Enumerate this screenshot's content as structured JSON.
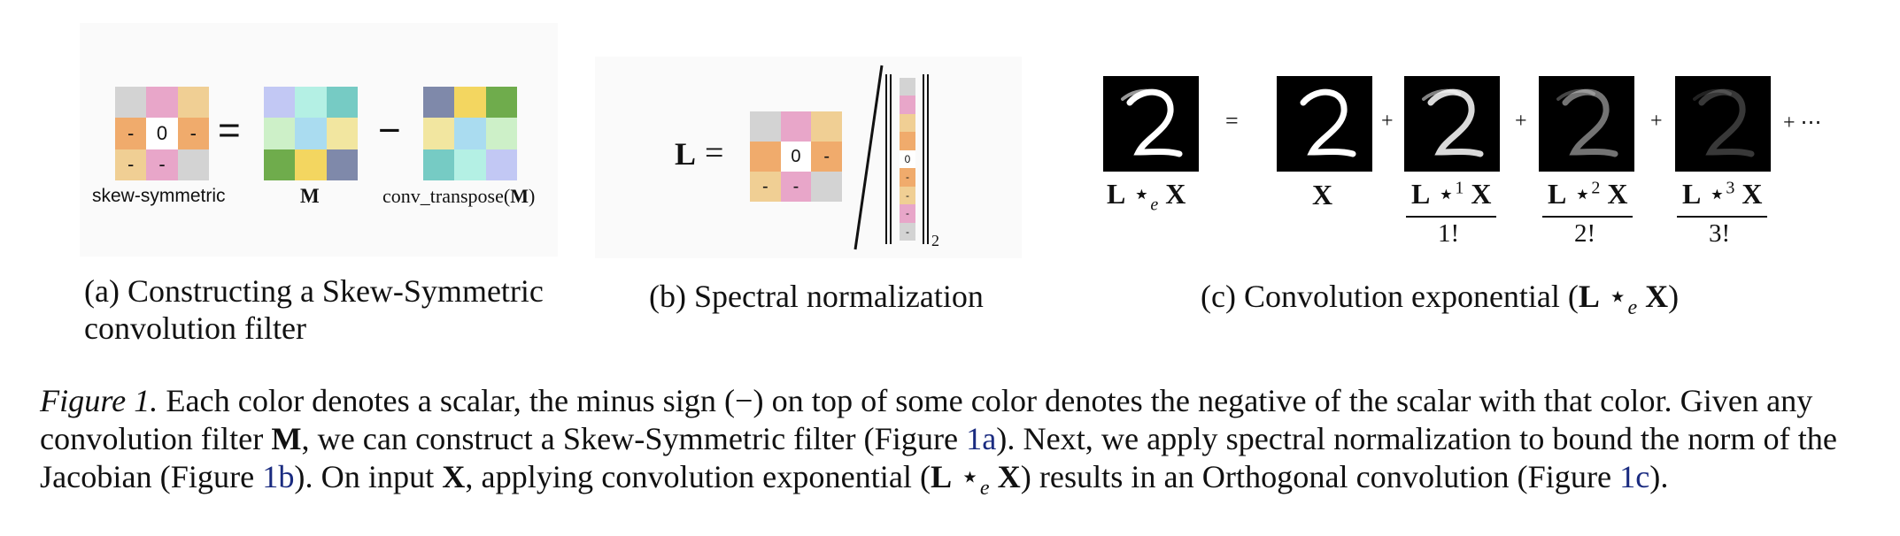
{
  "panel_a": {
    "skew_grid": [
      "",
      "",
      "",
      "-",
      "0",
      "-",
      "-",
      "-",
      ""
    ],
    "skew_colors": [
      "#d3d3d3",
      "#e8a6c9",
      "#f0cf94",
      "#f0ab6c",
      "#ffffff",
      "#f0ab6c",
      "#f0cf94",
      "#e8a6c9",
      "#d3d3d3"
    ],
    "m_colors": [
      "#c2c8f4",
      "#b4f0e4",
      "#76cbc4",
      "#cdf0c8",
      "#aadcf0",
      "#f2e6a0",
      "#6fac4c",
      "#f3d660",
      "#7f89aa"
    ],
    "mt_colors": [
      "#7f89aa",
      "#f3d660",
      "#6fac4c",
      "#f2e6a0",
      "#aadcf0",
      "#cdf0c8",
      "#76cbc4",
      "#b4f0e4",
      "#c2c8f4"
    ],
    "equals": "=",
    "minus": "−",
    "label_skew": "skew-symmetric",
    "label_m": "M",
    "label_mt_prefix": "conv_transpose(",
    "label_mt_m": "M",
    "label_mt_suffix": ")",
    "caption": "(a) Constructing a Skew-Symmetric",
    "caption_line2": "convolution filter"
  },
  "panel_b": {
    "L": "L",
    "equals": "=",
    "grid": [
      "",
      "",
      "",
      "",
      "0",
      "-",
      "-",
      "-",
      ""
    ],
    "grid_colors": [
      "#d3d3d3",
      "#e8a6c9",
      "#f0cf94",
      "#f0ab6c",
      "#ffffff",
      "#f0ab6c",
      "#f0cf94",
      "#e8a6c9",
      "#d3d3d3"
    ],
    "vec": [
      "",
      "",
      "",
      "",
      "0",
      "-",
      "-",
      "-",
      "-"
    ],
    "vec_colors": [
      "#d3d3d3",
      "#e8a6c9",
      "#f0cf94",
      "#f0ab6c",
      "#ffffff",
      "#f0ab6c",
      "#f0cf94",
      "#e8a6c9",
      "#d3d3d3"
    ],
    "norm_sub": "2",
    "caption": "(b) Spectral normalization"
  },
  "panel_c": {
    "equals": "=",
    "plus": "+",
    "plus_dots": "+ ⋯",
    "label_lhs_L": "L",
    "label_lhs_star": "⋆",
    "label_lhs_e": "e",
    "label_lhs_X": "X",
    "label_x": "X",
    "terms": [
      {
        "L": "L",
        "star": "⋆",
        "pow": "1",
        "X": "X",
        "den": "1!"
      },
      {
        "L": "L",
        "star": "⋆",
        "pow": "2",
        "X": "X",
        "den": "2!"
      },
      {
        "L": "L",
        "star": "⋆",
        "pow": "3",
        "X": "X",
        "den": "3!"
      }
    ],
    "digit_brightness": [
      1.0,
      1.0,
      0.85,
      0.45,
      0.22
    ],
    "caption_prefix": "(c) Convolution exponential (",
    "caption_L": "L",
    "caption_star": "⋆",
    "caption_e": "e",
    "caption_X": "X",
    "caption_suffix": ")"
  },
  "caption": {
    "figure_label": "Figure 1.",
    "s1": " Each color denotes a scalar, the minus sign (−) on top of some color denotes the negative of the scalar with that color. Given any convolution filter ",
    "M": "M",
    "s2": ", we can construct a Skew-Symmetric filter (Figure ",
    "ref1": "1a",
    "s3": "). Next, we apply spectral normalization to bound the norm of the Jacobian (Figure ",
    "ref2": "1b",
    "s4": "). On input ",
    "X1": "X",
    "s5": ", applying convolution exponential (",
    "L": "L",
    "star": " ⋆",
    "e": "e",
    "X2": " X",
    "s6": ") results in an Orthogonal convolution (Figure ",
    "ref3": "1c",
    "s7": ")."
  }
}
